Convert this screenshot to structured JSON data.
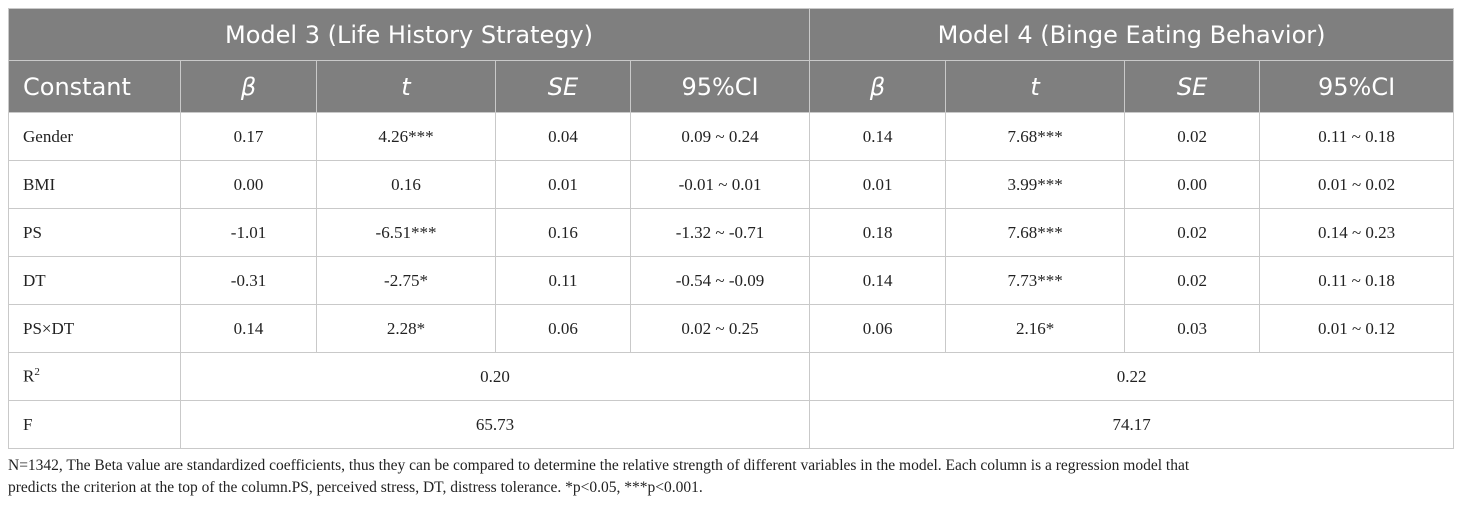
{
  "table": {
    "model3_header": "Model 3 (Life History Strategy)",
    "model4_header": "Model 4 (Binge Eating Behavior)",
    "subheaders": {
      "constant": "Constant",
      "beta": "β",
      "t": "t",
      "se": "SE",
      "ci": "95%CI"
    },
    "rows": [
      {
        "label": "Gender",
        "m3": [
          "0.17",
          "4.26***",
          "0.04",
          "0.09 ~ 0.24"
        ],
        "m4": [
          "0.14",
          "7.68***",
          "0.02",
          "0.11 ~ 0.18"
        ]
      },
      {
        "label": "BMI",
        "m3": [
          "0.00",
          "0.16",
          "0.01",
          "-0.01 ~ 0.01"
        ],
        "m4": [
          "0.01",
          "3.99***",
          "0.00",
          "0.01 ~ 0.02"
        ]
      },
      {
        "label": "PS",
        "m3": [
          "-1.01",
          "-6.51***",
          "0.16",
          "-1.32 ~ -0.71"
        ],
        "m4": [
          "0.18",
          "7.68***",
          "0.02",
          "0.14 ~ 0.23"
        ]
      },
      {
        "label": "DT",
        "m3": [
          "-0.31",
          "-2.75*",
          "0.11",
          "-0.54 ~ -0.09"
        ],
        "m4": [
          "0.14",
          "7.73***",
          "0.02",
          "0.11 ~ 0.18"
        ]
      },
      {
        "label": "PS×DT",
        "m3": [
          "0.14",
          "2.28*",
          "0.06",
          "0.02 ~ 0.25"
        ],
        "m4": [
          "0.06",
          "2.16*",
          "0.03",
          "0.01 ~ 0.12"
        ]
      }
    ],
    "r2": {
      "label_base": "R",
      "label_sup": "2",
      "m3": "0.20",
      "m4": "0.22"
    },
    "f": {
      "label": "F",
      "m3": "65.73",
      "m4": "74.17"
    }
  },
  "note": {
    "line1": "N=1342, The Beta value are standardized coefficients, thus they can be compared to determine the relative strength of different variables in the model. Each column is a regression model that",
    "line2": "predicts the criterion at the top of the column.PS, perceived stress, DT, distress tolerance. *p<0.05, ***p<0.001."
  },
  "colors": {
    "header_bg": "#7f7f7f",
    "header_text": "#ffffff",
    "border": "#c9c9c9"
  }
}
